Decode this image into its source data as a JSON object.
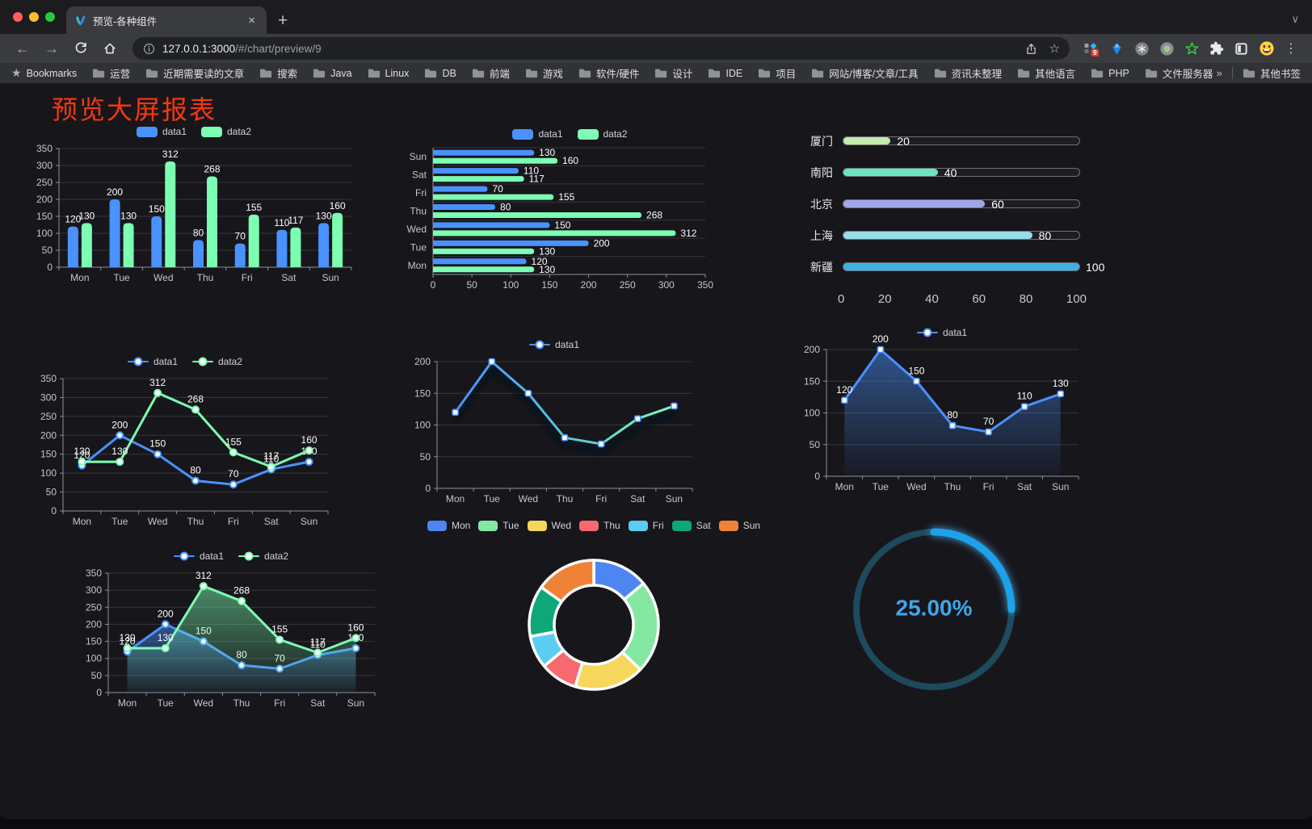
{
  "browser": {
    "tab_title": "预览-各种组件",
    "url_host": "127.0.0.1:3000",
    "url_path": "/#/chart/preview/9",
    "bookmarks_label": "Bookmarks",
    "bookmarks": [
      "运营",
      "近期需要读的文章",
      "搜索",
      "Java",
      "Linux",
      "DB",
      "前端",
      "游戏",
      "软件/硬件",
      "设计",
      "IDE",
      "项目",
      "网站/博客/文章/工具",
      "资讯未整理",
      "其他语言",
      "PHP",
      "文件服务器"
    ],
    "other_bookmarks": "其他书签",
    "extension_badge": "9",
    "icons": {
      "close": "×",
      "new_tab": "+",
      "tab_chevron": "∨",
      "back": "←",
      "forward": "→",
      "star": "☆",
      "bookmarks_star": "★",
      "overflow": "»",
      "menu_dots": "⋮"
    }
  },
  "page": {
    "title": "预览大屏报表",
    "title_color": "#f5380e"
  },
  "chart_data": {
    "bar": {
      "type": "bar",
      "categories": [
        "Mon",
        "Tue",
        "Wed",
        "Thu",
        "Fri",
        "Sat",
        "Sun"
      ],
      "series": [
        {
          "name": "data1",
          "color": "#4992ff",
          "values": [
            120,
            200,
            150,
            80,
            70,
            110,
            130
          ]
        },
        {
          "name": "data2",
          "color": "#7cffb2",
          "values": [
            130,
            130,
            312,
            268,
            155,
            117,
            160
          ]
        }
      ],
      "ymax": 350,
      "yticks": [
        0,
        50,
        100,
        150,
        200,
        250,
        300,
        350
      ],
      "labels": true,
      "legend_style": "rect",
      "legend_position": "top"
    },
    "hbar": {
      "type": "hbar",
      "categories": [
        "Mon",
        "Tue",
        "Wed",
        "Thu",
        "Fri",
        "Sat",
        "Sun"
      ],
      "series": [
        {
          "name": "data1",
          "color": "#4992ff",
          "values": [
            120,
            200,
            150,
            80,
            70,
            110,
            130
          ]
        },
        {
          "name": "data2",
          "color": "#7cffb2",
          "values": [
            130,
            130,
            312,
            268,
            155,
            117,
            160
          ]
        }
      ],
      "xmax": 350,
      "xticks": [
        0,
        50,
        100,
        150,
        200,
        250,
        300,
        350
      ],
      "labels": true,
      "legend_style": "rect",
      "legend_position": "top",
      "reverse": true
    },
    "progress": {
      "type": "progress",
      "items": [
        {
          "label": "厦门",
          "value": 20,
          "color": "#c4ebad"
        },
        {
          "label": "南阳",
          "value": 40,
          "color": "#6be6c1"
        },
        {
          "label": "北京",
          "value": 60,
          "color": "#a0a7e6"
        },
        {
          "label": "上海",
          "value": 80,
          "color": "#96dee8"
        },
        {
          "label": "新疆",
          "value": 100,
          "color": "#3fb1e3"
        }
      ],
      "max": 100,
      "xticks": [
        0,
        20,
        40,
        60,
        80,
        100
      ]
    },
    "line_basic": {
      "type": "line",
      "categories": [
        "Mon",
        "Tue",
        "Wed",
        "Thu",
        "Fri",
        "Sat",
        "Sun"
      ],
      "series": [
        {
          "name": "data1",
          "color": "#4992ff",
          "values": [
            120,
            200,
            150,
            80,
            70,
            110,
            130
          ]
        },
        {
          "name": "data2",
          "color": "#7cffb2",
          "values": [
            130,
            130,
            312,
            268,
            155,
            117,
            160
          ]
        }
      ],
      "ymax": 350,
      "yticks": [
        0,
        50,
        100,
        150,
        200,
        250,
        300,
        350
      ],
      "labels": true,
      "marker": "circle",
      "legend_style": "line",
      "legend_position": "top"
    },
    "line_gradient": {
      "type": "line",
      "categories": [
        "Mon",
        "Tue",
        "Wed",
        "Thu",
        "Fri",
        "Sat",
        "Sun"
      ],
      "series": [
        {
          "name": "data1",
          "color": "#4992ff",
          "values": [
            120,
            200,
            150,
            80,
            70,
            110,
            130
          ]
        }
      ],
      "gradient": [
        "#4992ff",
        "#53c8d8",
        "#7cffb2"
      ],
      "shadow": true,
      "ymax": 200,
      "yticks": [
        0,
        50,
        100,
        150,
        200
      ],
      "labels": false,
      "marker": "square",
      "legend_style": "line",
      "legend_position": "top"
    },
    "line_area": {
      "type": "line",
      "categories": [
        "Mon",
        "Tue",
        "Wed",
        "Thu",
        "Fri",
        "Sat",
        "Sun"
      ],
      "series": [
        {
          "name": "data1",
          "color": "#4992ff",
          "values": [
            120,
            200,
            150,
            80,
            70,
            110,
            130
          ]
        }
      ],
      "area": true,
      "ymax": 200,
      "yticks": [
        0,
        50,
        100,
        150,
        200
      ],
      "labels": true,
      "marker": "square",
      "legend_style": "line",
      "legend_position": "top"
    },
    "line_area2": {
      "type": "line",
      "categories": [
        "Mon",
        "Tue",
        "Wed",
        "Thu",
        "Fri",
        "Sat",
        "Sun"
      ],
      "series": [
        {
          "name": "data1",
          "color": "#4992ff",
          "values": [
            120,
            200,
            150,
            80,
            70,
            110,
            130
          ]
        },
        {
          "name": "data2",
          "color": "#7cffb2",
          "values": [
            130,
            130,
            312,
            268,
            155,
            117,
            160
          ]
        }
      ],
      "area": true,
      "ymax": 350,
      "yticks": [
        0,
        50,
        100,
        150,
        200,
        250,
        300,
        350
      ],
      "labels": true,
      "marker": "circle",
      "legend_style": "line",
      "legend_position": "top"
    },
    "donut": {
      "type": "donut",
      "categories": [
        "Mon",
        "Tue",
        "Wed",
        "Thu",
        "Fri",
        "Sat",
        "Sun"
      ],
      "values": [
        120,
        200,
        150,
        80,
        70,
        110,
        130
      ],
      "colors": [
        "#4d86f0",
        "#85e8a2",
        "#f6d65c",
        "#f5696f",
        "#5bcdf0",
        "#0ea878",
        "#f08238"
      ],
      "legend_position": "top"
    },
    "gauge": {
      "type": "gauge",
      "value": 25,
      "text": "25.00%",
      "color": "#1ba2e8",
      "track": "#1d4a5c",
      "text_color": "#3fa6ea"
    }
  }
}
